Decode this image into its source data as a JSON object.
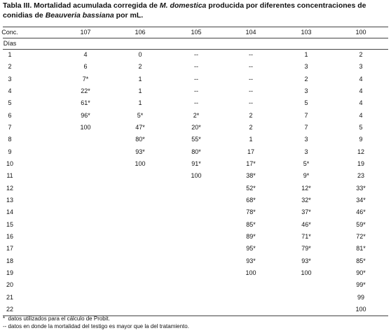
{
  "title": {
    "line1": [
      "Tabla III. Mortalidad acumulada corregida de ",
      "M. domestica",
      " producida por diferentes concentraciones de"
    ],
    "line2": [
      "conidias de ",
      "Beauveria bassiana",
      " por mL."
    ]
  },
  "table": {
    "header": [
      "Conc.",
      "107",
      "106",
      "105",
      "104",
      "103",
      "100"
    ],
    "subheader": "Días",
    "rows": [
      [
        "1",
        "4",
        "0",
        "--",
        "--",
        "1",
        "2"
      ],
      [
        "2",
        "6",
        "2",
        "--",
        "--",
        "3",
        "3"
      ],
      [
        "3",
        "7*",
        "1",
        "--",
        "--",
        "2",
        "4"
      ],
      [
        "4",
        "22*",
        "1",
        "--",
        "--",
        "3",
        "4"
      ],
      [
        "5",
        "61*",
        "1",
        "--",
        "--",
        "5",
        "4"
      ],
      [
        "6",
        "96*",
        "5*",
        "2*",
        "2",
        "7",
        "4"
      ],
      [
        "7",
        "100",
        "47*",
        "20*",
        "2",
        "7",
        "5"
      ],
      [
        "8",
        null,
        "80*",
        "55*",
        "1",
        "3",
        "9"
      ],
      [
        "9",
        null,
        "93*",
        "80*",
        "17",
        "3",
        "12"
      ],
      [
        "10",
        null,
        "100",
        "91*",
        "17*",
        "5*",
        "19"
      ],
      [
        "11",
        null,
        null,
        "100",
        "38*",
        "9*",
        "23"
      ],
      [
        "12",
        null,
        null,
        null,
        "52*",
        "12*",
        "33*"
      ],
      [
        "13",
        null,
        null,
        null,
        "68*",
        "32*",
        "34*"
      ],
      [
        "14",
        null,
        null,
        null,
        "78*",
        "37*",
        "46*"
      ],
      [
        "15",
        null,
        null,
        null,
        "85*",
        "46*",
        "59*"
      ],
      [
        "16",
        null,
        null,
        null,
        "89*",
        "71*",
        "72*"
      ],
      [
        "17",
        null,
        null,
        null,
        "95*",
        "79*",
        "81*"
      ],
      [
        "18",
        null,
        null,
        null,
        "93*",
        "93*",
        "85*"
      ],
      [
        "19",
        null,
        null,
        null,
        "100",
        "100",
        "90*"
      ],
      [
        "20",
        null,
        null,
        null,
        null,
        null,
        "99*"
      ],
      [
        "21",
        null,
        null,
        null,
        null,
        null,
        "99"
      ],
      [
        "22",
        null,
        null,
        null,
        null,
        null,
        "100"
      ]
    ]
  },
  "footnotes": [
    "*  datos utilizados para el cálculo de Probit.",
    "-- datos en donde la mortalidad del testigo es mayor que la del tratamiento."
  ]
}
